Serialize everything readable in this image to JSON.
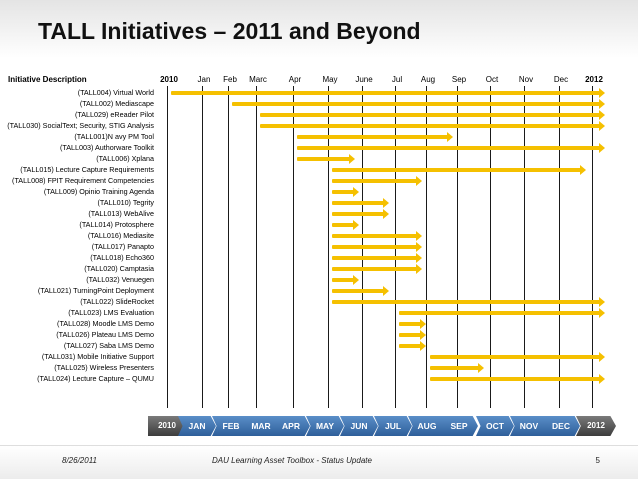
{
  "slide": {
    "title": "TALL Initiatives – 2011 and Beyond",
    "header_desc": "Initiative Description",
    "columns": [
      "2010",
      "Jan",
      "Feb",
      "Marc",
      "Apr",
      "May",
      "June",
      "Jul",
      "Aug",
      "Sep",
      "Oct",
      "Nov",
      "Dec",
      "2012"
    ],
    "initiatives": [
      {
        "label": "(TALL004) Virtual World",
        "start": "2010",
        "end": "2012"
      },
      {
        "label": "(TALL002) Mediascape",
        "start": "Feb",
        "end": "2012"
      },
      {
        "label": "(TALL029) eReader Pilot",
        "start": "Marc",
        "end": "2012"
      },
      {
        "label": "(TALL030) SocialText; Security, STIG Analysis",
        "start": "Marc",
        "end": "2012"
      },
      {
        "label": "(TALL001)N avy PM Tool",
        "start": "Apr",
        "end": "Aug"
      },
      {
        "label": "(TALL003) Authorware Toolkit",
        "start": "Apr",
        "end": "2012"
      },
      {
        "label": "(TALL006) Xplana",
        "start": "Apr",
        "end": "May"
      },
      {
        "label": "(TALL015) Lecture Capture Requirements",
        "start": "May",
        "end": "Dec"
      },
      {
        "label": "(TALL008) FPIT Requirement Competencies",
        "start": "May",
        "end": "Jul"
      },
      {
        "label": "(TALL009) Opinio Training Agenda",
        "start": "May",
        "end": "May"
      },
      {
        "label": "(TALL010) Tegrity",
        "start": "May",
        "end": "June"
      },
      {
        "label": "(TALL013) WebAlive",
        "start": "May",
        "end": "June"
      },
      {
        "label": "(TALL014) Protosphere",
        "start": "May",
        "end": "May"
      },
      {
        "label": "(TALL016) Mediasite",
        "start": "May",
        "end": "Jul"
      },
      {
        "label": "(TALL017) Panapto",
        "start": "May",
        "end": "Jul"
      },
      {
        "label": "(TALL018) Echo360",
        "start": "May",
        "end": "Jul"
      },
      {
        "label": "(TALL020) Camptasia",
        "start": "May",
        "end": "Jul"
      },
      {
        "label": "(TALL032) Venuegen",
        "start": "May",
        "end": "May"
      },
      {
        "label": "(TALL021) TurningPoint Deployment",
        "start": "May",
        "end": "June"
      },
      {
        "label": "(TALL022) SlideRocket",
        "start": "May",
        "end": "2012"
      },
      {
        "label": "(TALL023) LMS Evaluation",
        "start": "Jul",
        "end": "2012"
      },
      {
        "label": "(TALL028) Moodle LMS Demo",
        "start": "Jul",
        "end": "Jul"
      },
      {
        "label": "(TALL026) Plateau LMS Demo",
        "start": "Jul",
        "end": "Jul"
      },
      {
        "label": "(TALL027) Saba LMS Demo",
        "start": "Jul",
        "end": "Jul"
      },
      {
        "label": "(TALL031) Mobile Initiative Support",
        "start": "Aug",
        "end": "2012"
      },
      {
        "label": "(TALL025) Wireless Presenters",
        "start": "Aug",
        "end": "Sep"
      },
      {
        "label": "(TALL024) Lecture Capture – QUMU",
        "start": "Aug",
        "end": "2012"
      }
    ],
    "timeline": [
      "2010",
      "JAN",
      "FEB",
      "MAR",
      "APR",
      "MAY",
      "JUN",
      "JUL",
      "AUG",
      "SEP",
      "OCT",
      "NOV",
      "DEC",
      "2012"
    ],
    "footer_date": "8/26/2011",
    "footer_center": "DAU Learning Asset Toolbox - Status Update",
    "page_number": "5",
    "colors": {
      "bar": "#f5c000",
      "chevron": "#2e5f9a",
      "chevron_year": "#3c3c3c"
    }
  }
}
